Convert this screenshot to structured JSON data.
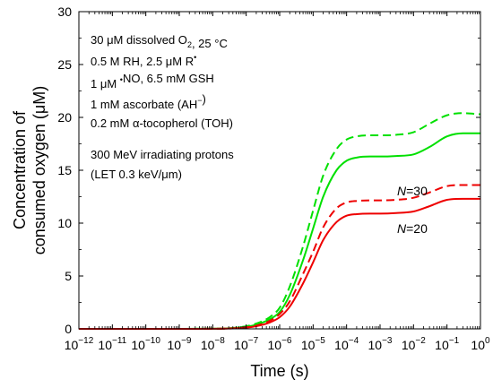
{
  "chart_data": {
    "type": "line",
    "xlabel": "Time (s)",
    "ylabel_lines": [
      "Concentration of",
      "consumed oxygen (μM)"
    ],
    "x_scale": "log",
    "xlim": [
      1e-12,
      1
    ],
    "ylim": [
      0,
      30
    ],
    "x_tick_exponents": [
      -12,
      -11,
      -10,
      -9,
      -8,
      -7,
      -6,
      -5,
      -4,
      -3,
      -2,
      -1,
      0
    ],
    "x_tick_labels": [
      "10",
      "10",
      "10",
      "10",
      "10",
      "10",
      "10",
      "10",
      "10",
      "10",
      "10",
      "10",
      "10"
    ],
    "x_tick_superscripts": [
      "−12",
      "−11",
      "−10",
      "−9",
      "−8",
      "−7",
      "−6",
      "−5",
      "−4",
      "−3",
      "−2",
      "−1",
      "0"
    ],
    "y_ticks": [
      0,
      5,
      10,
      15,
      20,
      25,
      30
    ],
    "y_tick_labels": [
      "0",
      "5",
      "10",
      "15",
      "20",
      "25",
      "30"
    ],
    "grid": false,
    "colors": {
      "n30": "#00e000",
      "n20": "#ee0000"
    },
    "series": [
      {
        "label": "N=30",
        "color_key": "n30",
        "dash": false,
        "x": [
          1e-12,
          1e-09,
          1e-08,
          3e-08,
          1e-07,
          2e-07,
          5e-07,
          1e-06,
          2e-06,
          5e-06,
          1e-05,
          2e-05,
          5e-05,
          0.0001,
          0.0002,
          0.0005,
          0.001,
          0.003,
          0.01,
          0.03,
          0.1,
          0.3,
          1
        ],
        "y": [
          0,
          0,
          0.02,
          0.05,
          0.2,
          0.4,
          0.9,
          1.6,
          3.2,
          6.5,
          9.5,
          12.5,
          15.0,
          15.9,
          16.2,
          16.3,
          16.3,
          16.35,
          16.5,
          17.2,
          18.2,
          18.5,
          18.5
        ]
      },
      {
        "label": "",
        "color_key": "n30",
        "dash": true,
        "x": [
          1e-12,
          1e-09,
          1e-08,
          3e-08,
          1e-07,
          2e-07,
          5e-07,
          1e-06,
          2e-06,
          5e-06,
          1e-05,
          2e-05,
          5e-05,
          0.0001,
          0.0002,
          0.0005,
          0.001,
          0.003,
          0.01,
          0.03,
          0.1,
          0.3,
          1
        ],
        "y": [
          0,
          0,
          0.02,
          0.05,
          0.25,
          0.5,
          1.1,
          2.0,
          4.0,
          7.8,
          11.2,
          14.5,
          17.0,
          17.9,
          18.2,
          18.3,
          18.3,
          18.35,
          18.6,
          19.4,
          20.2,
          20.4,
          20.3
        ]
      },
      {
        "label": "N=20",
        "color_key": "n20",
        "dash": false,
        "x": [
          1e-12,
          1e-09,
          1e-08,
          3e-08,
          1e-07,
          2e-07,
          5e-07,
          1e-06,
          2e-06,
          5e-06,
          1e-05,
          2e-05,
          5e-05,
          0.0001,
          0.0002,
          0.0005,
          0.001,
          0.003,
          0.01,
          0.03,
          0.1,
          0.3,
          1
        ],
        "y": [
          0,
          0,
          0.01,
          0.03,
          0.12,
          0.25,
          0.6,
          1.1,
          2.1,
          4.3,
          6.3,
          8.4,
          10.1,
          10.7,
          10.85,
          10.9,
          10.9,
          10.95,
          11.1,
          11.6,
          12.2,
          12.3,
          12.3
        ]
      },
      {
        "label": "",
        "color_key": "n20",
        "dash": true,
        "x": [
          1e-12,
          1e-09,
          1e-08,
          3e-08,
          1e-07,
          2e-07,
          5e-07,
          1e-06,
          2e-06,
          5e-06,
          1e-05,
          2e-05,
          5e-05,
          0.0001,
          0.0002,
          0.0005,
          0.001,
          0.003,
          0.01,
          0.03,
          0.1,
          0.3,
          1
        ],
        "y": [
          0,
          0,
          0.01,
          0.03,
          0.15,
          0.3,
          0.75,
          1.4,
          2.6,
          5.2,
          7.3,
          9.6,
          11.4,
          11.95,
          12.1,
          12.15,
          12.15,
          12.2,
          12.4,
          12.9,
          13.5,
          13.6,
          13.6
        ]
      }
    ],
    "annotations": [
      {
        "id": "line1",
        "parts": [
          {
            "t": "30 μM dissolved O"
          },
          {
            "t": "2",
            "sub": true
          },
          {
            "t": ", 25 °C"
          }
        ]
      },
      {
        "id": "line2",
        "parts": [
          {
            "t": "0.5 M RH, 2.5 μM R"
          },
          {
            "t": "•",
            "sup": true
          }
        ]
      },
      {
        "id": "line3",
        "parts": [
          {
            "t": "1 μM "
          },
          {
            "t": "•",
            "sup": true
          },
          {
            "t": "NO, 6.5 mM GSH"
          }
        ]
      },
      {
        "id": "line4",
        "parts": [
          {
            "t": "1 mM ascorbate (AH"
          },
          {
            "t": "−",
            "sup": true
          },
          {
            "t": ")"
          }
        ]
      },
      {
        "id": "line5",
        "parts": [
          {
            "t": "0.2 mM α-tocopherol (TOH)"
          }
        ]
      },
      {
        "id": "line6",
        "parts": [
          {
            "t": "300 MeV irradiating protons"
          }
        ]
      },
      {
        "id": "line7",
        "parts": [
          {
            "t": "(LET 0.3 keV/μm)"
          }
        ]
      }
    ],
    "curve_labels": [
      {
        "id": "n30",
        "italic": "N",
        "rest": "=30"
      },
      {
        "id": "n20",
        "italic": "N",
        "rest": "=20"
      }
    ]
  }
}
